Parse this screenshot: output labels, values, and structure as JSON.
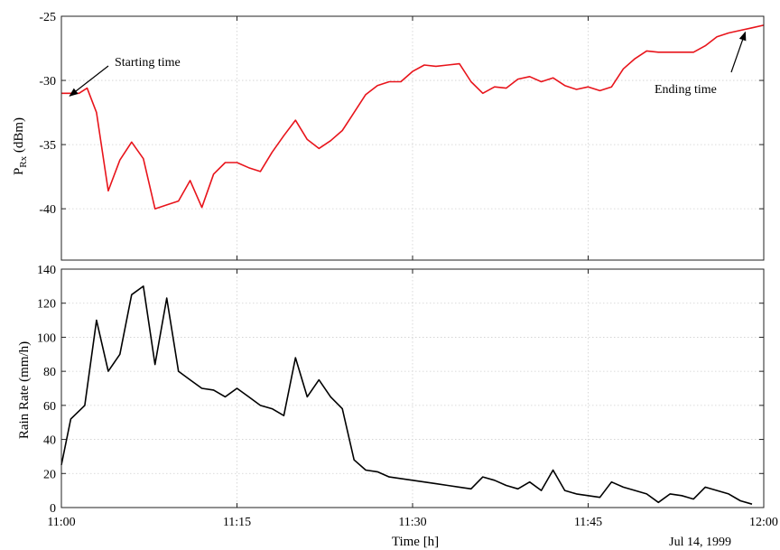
{
  "chart_data": [
    {
      "type": "line",
      "ylabel_main": "P",
      "ylabel_sub": "Rx",
      "ylabel_unit": " (dBm)",
      "ylim": [
        -44,
        -25
      ],
      "yticks": [
        -25,
        -30,
        -35,
        -40
      ],
      "ytick_labels": [
        "-25",
        "-30",
        "-35",
        "-40"
      ],
      "xlim": [
        0,
        60
      ],
      "grid": true,
      "series": [
        {
          "color": "#e8141b",
          "x": [
            0,
            0.8,
            1.5,
            2.2,
            3,
            4,
            5,
            6,
            7,
            8,
            9,
            10,
            11,
            12,
            13,
            14,
            15,
            16,
            17,
            18,
            19,
            20,
            21,
            22,
            23,
            24,
            25,
            26,
            27,
            28,
            29,
            30,
            31,
            32,
            33,
            34,
            35,
            36,
            37,
            38,
            39,
            40,
            41,
            42,
            43,
            44,
            45,
            46,
            47,
            48,
            49,
            50,
            51,
            52,
            53,
            54,
            55,
            56,
            57,
            58,
            59,
            60
          ],
          "values": [
            -31,
            -31,
            -31,
            -30.6,
            -32.5,
            -38.6,
            -36.2,
            -34.8,
            -36.1,
            -40,
            -39.7,
            -39.4,
            -37.8,
            -39.9,
            -37.3,
            -36.4,
            -36.4,
            -36.8,
            -37.1,
            -35.6,
            -34.3,
            -33.1,
            -34.6,
            -35.3,
            -34.7,
            -33.9,
            -32.5,
            -31.1,
            -30.4,
            -30.1,
            -30.1,
            -29.3,
            -28.8,
            -28.9,
            -28.8,
            -28.7,
            -30.1,
            -31,
            -30.5,
            -30.6,
            -29.9,
            -29.7,
            -30.1,
            -29.8,
            -30.4,
            -30.7,
            -30.5,
            -30.8,
            -30.5,
            -29.1,
            -28.3,
            -27.7,
            -27.8,
            -27.8,
            -27.8,
            -27.8,
            -27.3,
            -26.6,
            -26.3,
            -26.1,
            -25.9,
            -25.7
          ]
        }
      ],
      "annotations": [
        {
          "text": "Starting time",
          "x": 0.4,
          "y": -31
        },
        {
          "text": "Ending time",
          "x": 58.5,
          "y": -26.1
        }
      ]
    },
    {
      "type": "line",
      "ylabel": "Rain Rate (mm/h)",
      "xlabel": "Time [h]",
      "ylim": [
        0,
        140
      ],
      "yticks": [
        0,
        20,
        40,
        60,
        80,
        100,
        120,
        140
      ],
      "ytick_labels": [
        "0",
        "20",
        "40",
        "60",
        "80",
        "100",
        "120",
        "140"
      ],
      "xlim": [
        0,
        60
      ],
      "xticks": [
        0,
        15,
        30,
        45,
        60
      ],
      "xtick_labels": [
        "11:00",
        "11:15",
        "11:30",
        "11:45",
        "12:00"
      ],
      "date_label": "Jul 14, 1999",
      "grid": true,
      "series": [
        {
          "color": "#000000",
          "x": [
            0,
            0.8,
            2,
            3,
            4,
            5,
            6,
            7,
            8,
            9,
            10,
            11,
            12,
            13,
            14,
            15,
            16,
            17,
            18,
            19,
            20,
            21,
            22,
            23,
            24,
            25,
            26,
            27,
            28,
            29,
            30,
            31,
            32,
            33,
            34,
            35,
            36,
            37,
            38,
            39,
            40,
            41,
            42,
            43,
            44,
            45,
            46,
            47,
            48,
            49,
            50,
            51,
            52,
            53,
            54,
            55,
            56,
            57,
            58,
            59
          ],
          "values": [
            25,
            52,
            60,
            110,
            80,
            90,
            125,
            130,
            84,
            123,
            80,
            75,
            70,
            69,
            65,
            70,
            65,
            60,
            58,
            54,
            88,
            65,
            75,
            65,
            58,
            28,
            22,
            21,
            18,
            17,
            16,
            15,
            14,
            13,
            12,
            11,
            18,
            16,
            13,
            11,
            15,
            10,
            22,
            10,
            8,
            7,
            6,
            15,
            12,
            10,
            8,
            3,
            8,
            7,
            5,
            12,
            10,
            8,
            4,
            2
          ]
        }
      ]
    }
  ]
}
